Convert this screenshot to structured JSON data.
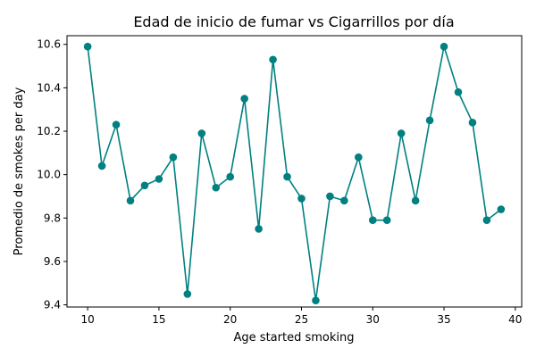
{
  "chart_data": {
    "type": "line",
    "title": "Edad de inicio de fumar vs Cigarrillos por día",
    "xlabel": "Age started smoking",
    "ylabel": "Promedio de smokes per day",
    "xlim": [
      8.55,
      40.45
    ],
    "ylim": [
      9.39,
      10.64
    ],
    "xticks": [
      10,
      15,
      20,
      25,
      30,
      35,
      40
    ],
    "yticks": [
      9.4,
      9.6,
      9.8,
      10.0,
      10.2,
      10.4,
      10.6
    ],
    "ytick_labels": [
      "9.4",
      "9.6",
      "9.8",
      "10.0",
      "10.2",
      "10.4",
      "10.6"
    ],
    "grid": false,
    "line_color": "#008080",
    "series": [
      {
        "x": [
          10,
          11,
          12,
          13,
          14,
          15,
          16,
          17,
          18,
          19,
          20,
          21,
          22,
          23,
          24,
          25,
          26,
          27,
          28,
          29,
          30,
          31,
          32,
          33,
          34,
          35,
          36,
          37,
          38,
          39
        ],
        "values": [
          10.59,
          10.04,
          10.23,
          9.88,
          9.95,
          9.98,
          10.08,
          9.45,
          10.19,
          9.94,
          9.99,
          10.35,
          9.75,
          10.53,
          9.99,
          9.89,
          9.42,
          9.9,
          9.88,
          10.08,
          9.79,
          9.79,
          10.19,
          9.88,
          10.25,
          10.59,
          10.38,
          10.24,
          9.79,
          9.84
        ]
      }
    ]
  }
}
